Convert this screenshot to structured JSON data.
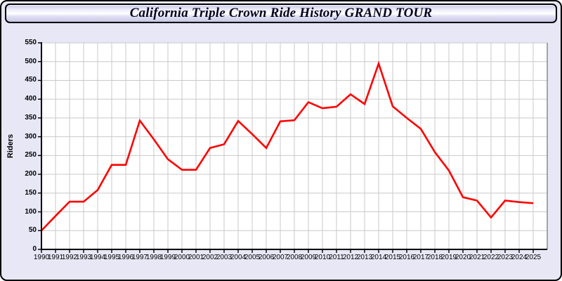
{
  "header": {
    "title": "California Triple Crown Ride History GRAND TOUR"
  },
  "chart_data": {
    "type": "line",
    "title": "California Triple Crown Ride History GRAND TOUR",
    "xlabel": "",
    "ylabel": "Riders",
    "x": [
      1990,
      1991,
      1992,
      1993,
      1994,
      1995,
      1996,
      1997,
      1998,
      1999,
      2000,
      2001,
      2002,
      2003,
      2004,
      2005,
      2006,
      2007,
      2008,
      2009,
      2010,
      2011,
      2012,
      2013,
      2014,
      2015,
      2016,
      2017,
      2018,
      2019,
      2020,
      2021,
      2022,
      2023,
      2024,
      2025
    ],
    "values": [
      50,
      89,
      127,
      127,
      158,
      225,
      225,
      343,
      293,
      240,
      212,
      212,
      270,
      280,
      342,
      307,
      270,
      341,
      344,
      392,
      376,
      380,
      413,
      387,
      495,
      381,
      350,
      321,
      259,
      210,
      139,
      130,
      85,
      130,
      126,
      123
    ],
    "ylim": [
      0,
      550
    ],
    "ytick_step": 50,
    "grid": true,
    "legend": "none",
    "colors": {
      "line": "#ff0000",
      "grid": "#c9c9c9",
      "plot_bg": "#ffffff",
      "page_bg": "#e7e7f6",
      "axis": "#000000",
      "right_border": "#555566"
    }
  }
}
